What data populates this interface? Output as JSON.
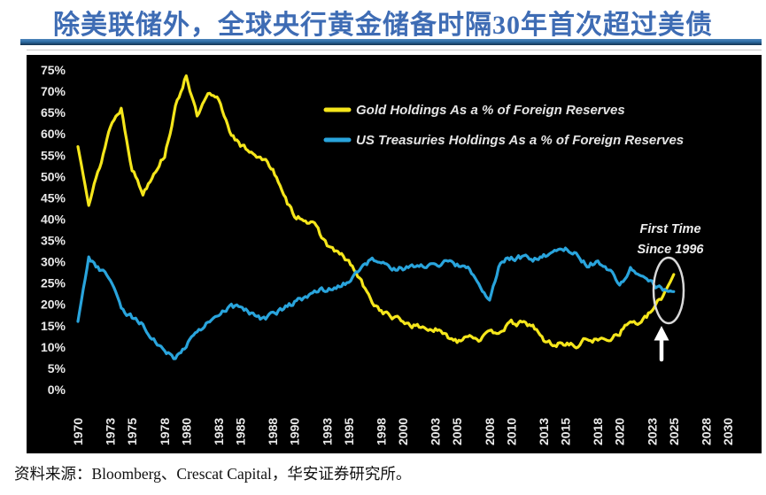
{
  "title": "除美联储外，全球央行黄金储备时隔30年首次超过美债",
  "source": "资料来源：Bloomberg、Crescat Capital，华安证券研究所。",
  "colors": {
    "title_text": "#3e6cb4",
    "title_bar_top": "#4d84bb",
    "title_bar_main": "#2e6da4",
    "title_bar_bottom": "#12314f",
    "chart_background": "#000000",
    "gold_line": "#f5e61b",
    "treasury_line": "#29a4dc",
    "axis_text": "#e9e9e9",
    "legend_text": "#e5e5e5",
    "annotation_text": "#ededed",
    "highlight_stroke": "#d9d9d9",
    "arrow": "#ffffff",
    "source_text": "#111111"
  },
  "chart_data": {
    "type": "line",
    "title": "",
    "xlabel": "",
    "ylabel": "",
    "grid": false,
    "legend_position": "top-center",
    "ylim": [
      0,
      75
    ],
    "xlim": [
      1965,
      2033
    ],
    "y_ticks": [
      75,
      70,
      65,
      60,
      55,
      50,
      45,
      40,
      35,
      30,
      25,
      20,
      15,
      10,
      5,
      0
    ],
    "y_tick_suffix": "%",
    "x_ticks": [
      1970,
      1973,
      1975,
      1978,
      1980,
      1983,
      1985,
      1988,
      1990,
      1993,
      1995,
      1998,
      2000,
      2003,
      2005,
      2008,
      2010,
      2013,
      2015,
      2018,
      2020,
      2023,
      2025,
      2028,
      2030
    ],
    "x": [
      1970,
      1971,
      1972,
      1973,
      1974,
      1975,
      1976,
      1977,
      1978,
      1979,
      1980,
      1981,
      1982,
      1983,
      1984,
      1985,
      1986,
      1987,
      1988,
      1989,
      1990,
      1991,
      1992,
      1993,
      1994,
      1995,
      1996,
      1997,
      1998,
      1999,
      2000,
      2001,
      2002,
      2003,
      2004,
      2005,
      2006,
      2007,
      2008,
      2009,
      2010,
      2011,
      2012,
      2013,
      2014,
      2015,
      2016,
      2017,
      2018,
      2019,
      2020,
      2021,
      2022,
      2023,
      2024,
      2025
    ],
    "series": [
      {
        "name": "Gold Holdings As a % of Foreign Reserves",
        "color": "#f5e61b",
        "values": [
          57,
          44,
          52,
          62,
          66,
          52,
          46,
          51,
          55,
          66,
          74,
          64,
          69,
          68,
          61,
          57,
          56,
          54,
          52,
          45,
          41,
          40,
          38,
          34,
          32,
          30,
          26,
          21,
          18.5,
          17,
          16,
          15,
          14.5,
          14,
          12.5,
          11.5,
          13,
          12,
          13,
          14,
          15.5,
          15.5,
          15,
          11.5,
          10.5,
          11,
          10,
          12,
          11.5,
          12,
          13.5,
          16,
          15.5,
          18.5,
          22,
          27
        ]
      },
      {
        "name": "US Treasuries Holdings As a % of Foreign Reserves",
        "color": "#29a4dc",
        "values": [
          16,
          31,
          28,
          26,
          19,
          17,
          15,
          12,
          9,
          7.5,
          10.5,
          14,
          15.5,
          17,
          19.5,
          19,
          18,
          16.5,
          17.5,
          19,
          20.5,
          21.5,
          23,
          23.5,
          24.5,
          25.5,
          28,
          30.5,
          29.5,
          28,
          28.5,
          29,
          29,
          29.5,
          30,
          29,
          28.5,
          24,
          21,
          30,
          31,
          31,
          30.5,
          31.5,
          32,
          33,
          31.5,
          29.5,
          30,
          28.5,
          24,
          28.5,
          26.5,
          25,
          23.5,
          23
        ]
      }
    ],
    "annotation": {
      "line1": "First Time",
      "line2": "Since 1996"
    }
  }
}
